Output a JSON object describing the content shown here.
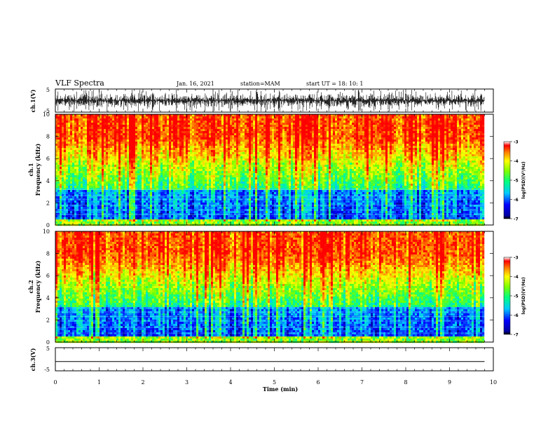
{
  "header": {
    "title": "VLF Spectra",
    "date": "Jan. 16, 2021",
    "station": "station=MAM",
    "start": "start UT =  18: 10: 1"
  },
  "chart_data": [
    {
      "type": "line",
      "name": "ch1-waveform",
      "ylabel": "ch.1(V)",
      "ylim": [
        -5,
        5
      ],
      "yticks": [
        "5",
        "-5"
      ]
    },
    {
      "type": "heatmap",
      "name": "ch1-spectrogram",
      "ylabel": "ch.1\nFrequency (kHz)",
      "ylabel_ch": "ch.1",
      "ylabel_freq": "Frequency (kHz)",
      "ylim": [
        0,
        10
      ],
      "yticks": [
        "0",
        "2",
        "4",
        "6",
        "8",
        "10"
      ],
      "colorbar": {
        "label": "log(PSD)(V²/Hz)",
        "range": [
          -7,
          -3
        ],
        "ticks": [
          "-3",
          "-4",
          "-5",
          "-6",
          "-7"
        ]
      }
    },
    {
      "type": "heatmap",
      "name": "ch2-spectrogram",
      "ylabel_ch": "ch.2",
      "ylabel_freq": "Frequency (kHz)",
      "ylim": [
        0,
        10
      ],
      "yticks": [
        "0",
        "2",
        "4",
        "6",
        "8",
        "10"
      ],
      "colorbar": {
        "label": "log(PSD)(V²/Hz)",
        "range": [
          -7,
          -3
        ],
        "ticks": [
          "-3",
          "-4",
          "-5",
          "-6",
          "-7"
        ]
      }
    },
    {
      "type": "line",
      "name": "ch3-waveform",
      "ylabel": "ch.3(V)",
      "ylim": [
        -5,
        5
      ],
      "yticks": [
        "5",
        "-5"
      ],
      "value": -1
    }
  ],
  "xaxis": {
    "label": "Time (min)",
    "range": [
      0,
      10
    ],
    "ticks": [
      "0",
      "1",
      "2",
      "3",
      "4",
      "5",
      "6",
      "7",
      "8",
      "9",
      "10"
    ],
    "data_end": 9.8
  }
}
